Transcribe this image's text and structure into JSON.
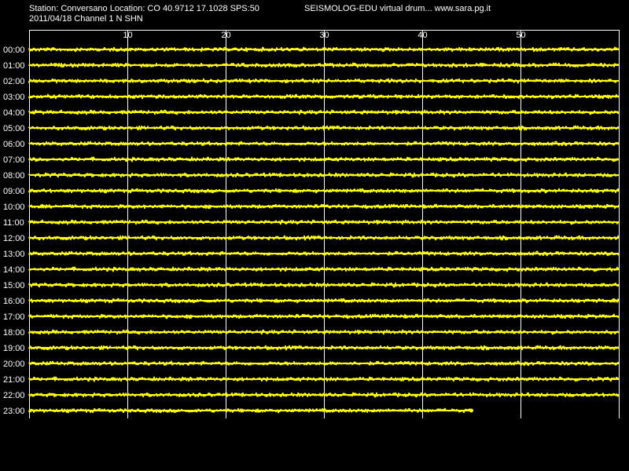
{
  "header": {
    "station_line": "Station: Conversano Location: CO 40.9712 17.1028 SPS:50",
    "program_line": "SEISMOLOG-EDU virtual drum... www.sara.pg.it",
    "date_line": "2011/04/18  Channel 1 N SHN"
  },
  "colors": {
    "background": "#000000",
    "grid": "#ffffff",
    "trace": "#ffff00",
    "text": "#ffffff"
  },
  "chart_data": {
    "type": "line",
    "title": "",
    "xlabel": "",
    "ylabel": "",
    "x_unit_range": [
      0,
      60
    ],
    "x_ticks": [
      10,
      20,
      30,
      40,
      50
    ],
    "x_tick_labels": [
      "10",
      "20",
      "30",
      "40",
      "50"
    ],
    "rows": [
      {
        "label": "00:00",
        "end_minute": 60
      },
      {
        "label": "01:00",
        "end_minute": 60
      },
      {
        "label": "02:00",
        "end_minute": 60
      },
      {
        "label": "03:00",
        "end_minute": 60
      },
      {
        "label": "04:00",
        "end_minute": 60
      },
      {
        "label": "05:00",
        "end_minute": 60
      },
      {
        "label": "06:00",
        "end_minute": 60
      },
      {
        "label": "07:00",
        "end_minute": 60
      },
      {
        "label": "08:00",
        "end_minute": 60
      },
      {
        "label": "09:00",
        "end_minute": 60
      },
      {
        "label": "10:00",
        "end_minute": 60
      },
      {
        "label": "11:00",
        "end_minute": 60
      },
      {
        "label": "12:00",
        "end_minute": 60
      },
      {
        "label": "13:00",
        "end_minute": 60
      },
      {
        "label": "14:00",
        "end_minute": 60
      },
      {
        "label": "15:00",
        "end_minute": 60
      },
      {
        "label": "16:00",
        "end_minute": 60
      },
      {
        "label": "17:00",
        "end_minute": 60
      },
      {
        "label": "18:00",
        "end_minute": 60
      },
      {
        "label": "19:00",
        "end_minute": 60
      },
      {
        "label": "20:00",
        "end_minute": 60
      },
      {
        "label": "21:00",
        "end_minute": 60
      },
      {
        "label": "22:00",
        "end_minute": 60
      },
      {
        "label": "23:00",
        "end_minute": 45
      }
    ],
    "grid": true,
    "legend": "none"
  }
}
